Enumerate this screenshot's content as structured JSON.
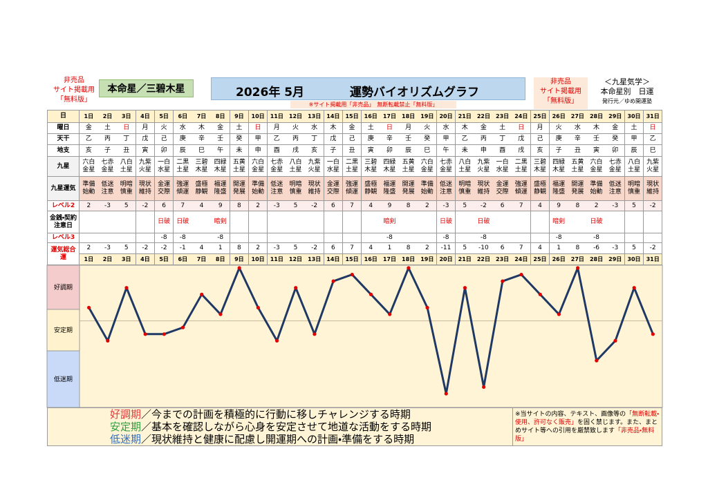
{
  "header": {
    "free_left": [
      "非売品",
      "サイト掲載用",
      "「無料版」"
    ],
    "honmei": "本命星／三碧木星",
    "year_month": "2026年 5月",
    "title": "運勢バイオリズムグラフ",
    "free_right": [
      "非売品",
      "サイト掲載用",
      "「無料版」"
    ],
    "school": "＜九星気学＞",
    "kind": "本命星別　日運",
    "publisher": "発行元／ゆめ開運塾",
    "notice": "※サイト掲載用「非売品」　無断転載禁止「無料版」"
  },
  "table": {
    "row_labels": {
      "days": "日",
      "weekday": "曜日",
      "kan": "天干",
      "shi": "地支",
      "star": "九星",
      "fortune": "九星運気",
      "level2": "レベル2",
      "caution": "金銭・契約注意日",
      "level3": "レベル3",
      "total": "運気総合運"
    },
    "days": [
      "1日",
      "2日",
      "3日",
      "4日",
      "5日",
      "6日",
      "7日",
      "8日",
      "9日",
      "10日",
      "11日",
      "12日",
      "13日",
      "14日",
      "15日",
      "16日",
      "17日",
      "18日",
      "19日",
      "20日",
      "21日",
      "22日",
      "23日",
      "24日",
      "25日",
      "26日",
      "27日",
      "28日",
      "29日",
      "30日",
      "31日"
    ],
    "weekday": [
      "金",
      "土",
      "日",
      "月",
      "火",
      "水",
      "木",
      "金",
      "土",
      "日",
      "月",
      "火",
      "水",
      "木",
      "金",
      "土",
      "日",
      "月",
      "火",
      "水",
      "木",
      "金",
      "土",
      "日",
      "月",
      "火",
      "水",
      "木",
      "金",
      "土",
      "日"
    ],
    "kan": [
      "乙",
      "丙",
      "丁",
      "戊",
      "己",
      "庚",
      "辛",
      "壬",
      "癸",
      "甲",
      "乙",
      "丙",
      "丁",
      "戊",
      "己",
      "庚",
      "辛",
      "壬",
      "癸",
      "甲",
      "乙",
      "丙",
      "丁",
      "戊",
      "己",
      "庚",
      "辛",
      "壬",
      "癸",
      "甲",
      "乙"
    ],
    "shi": [
      "亥",
      "子",
      "丑",
      "寅",
      "卯",
      "辰",
      "巳",
      "午",
      "未",
      "申",
      "酉",
      "戌",
      "亥",
      "子",
      "丑",
      "寅",
      "卯",
      "辰",
      "巳",
      "午",
      "未",
      "申",
      "酉",
      "戌",
      "亥",
      "子",
      "丑",
      "寅",
      "卯",
      "辰",
      "巳"
    ],
    "star": [
      "六白金星",
      "七赤金星",
      "八白土星",
      "九紫火星",
      "一白水星",
      "二黒土星",
      "三碧木星",
      "四緑木星",
      "五黄土星",
      "六白金星",
      "七赤金星",
      "八白土星",
      "九紫火星",
      "一白水星",
      "二黒土星",
      "三碧木星",
      "四緑木星",
      "五黄土星",
      "六白金星",
      "七赤金星",
      "八白土星",
      "九紫火星",
      "一白水星",
      "二黒土星",
      "三碧木星",
      "四緑木星",
      "五黄土星",
      "六白金星",
      "七赤金星",
      "八白土星",
      "九紫火星"
    ],
    "fortune": [
      "準備始動",
      "低迷注意",
      "明暗慎重",
      "現状維持",
      "金運交際",
      "強運傾運",
      "盛極静観",
      "福運隆盛",
      "開運発展",
      "準備始動",
      "低迷注意",
      "明暗慎重",
      "現状維持",
      "金運交際",
      "強運傾運",
      "盛極静観",
      "福運隆盛",
      "開運発展",
      "準備始動",
      "低迷注意",
      "明暗慎重",
      "現状維持",
      "金運交際",
      "強運傾運",
      "盛極静観",
      "福運隆盛",
      "開運発展",
      "準備始動",
      "低迷注意",
      "明暗慎重",
      "現状維持"
    ],
    "level2": [
      2,
      -3,
      5,
      -2,
      6,
      7,
      4,
      9,
      8,
      2,
      -3,
      5,
      -2,
      6,
      7,
      4,
      9,
      8,
      2,
      -3,
      5,
      -2,
      6,
      7,
      4,
      9,
      8,
      2,
      -3,
      5,
      -2
    ],
    "caution": [
      null,
      null,
      null,
      null,
      "日破",
      "日破",
      null,
      "暗剣",
      null,
      null,
      null,
      null,
      null,
      null,
      null,
      null,
      "暗剣",
      null,
      null,
      "日破",
      null,
      "日破",
      null,
      null,
      null,
      "暗剣",
      null,
      "日破",
      null,
      null,
      null
    ],
    "level3": [
      null,
      null,
      null,
      null,
      -8,
      -8,
      null,
      -8,
      null,
      null,
      null,
      null,
      null,
      null,
      null,
      null,
      -8,
      null,
      null,
      -8,
      null,
      -8,
      null,
      null,
      null,
      -8,
      null,
      -8,
      null,
      null,
      null
    ],
    "total": [
      2,
      -3,
      5,
      -2,
      -2,
      -1,
      4,
      1,
      8,
      2,
      -3,
      5,
      -2,
      6,
      7,
      4,
      1,
      8,
      2,
      -11,
      5,
      -10,
      6,
      7,
      4,
      1,
      8,
      -6,
      -3,
      5,
      -2
    ]
  },
  "graph": {
    "zones": [
      "好調期",
      "安定期",
      "低迷期"
    ]
  },
  "legend": [
    {
      "term": "好調期",
      "text": "／今までの計画を積極的に行動に移しチャレンジする時期"
    },
    {
      "term": "安定期",
      "text": "／基本を確認しながら心身を安定させて地道な活動をする時期"
    },
    {
      "term": "低迷期",
      "text": "／現状維持と健康に配慮し開運期への計画・準備をする時期"
    }
  ],
  "note": [
    "※当サイトの内容、テキスト、画像等の",
    "「無断転載・使用、許可なく販売」",
    "を固く禁じます。また、まとめサイト等への引用を厳禁致します",
    "「非売品・無料版」"
  ]
}
